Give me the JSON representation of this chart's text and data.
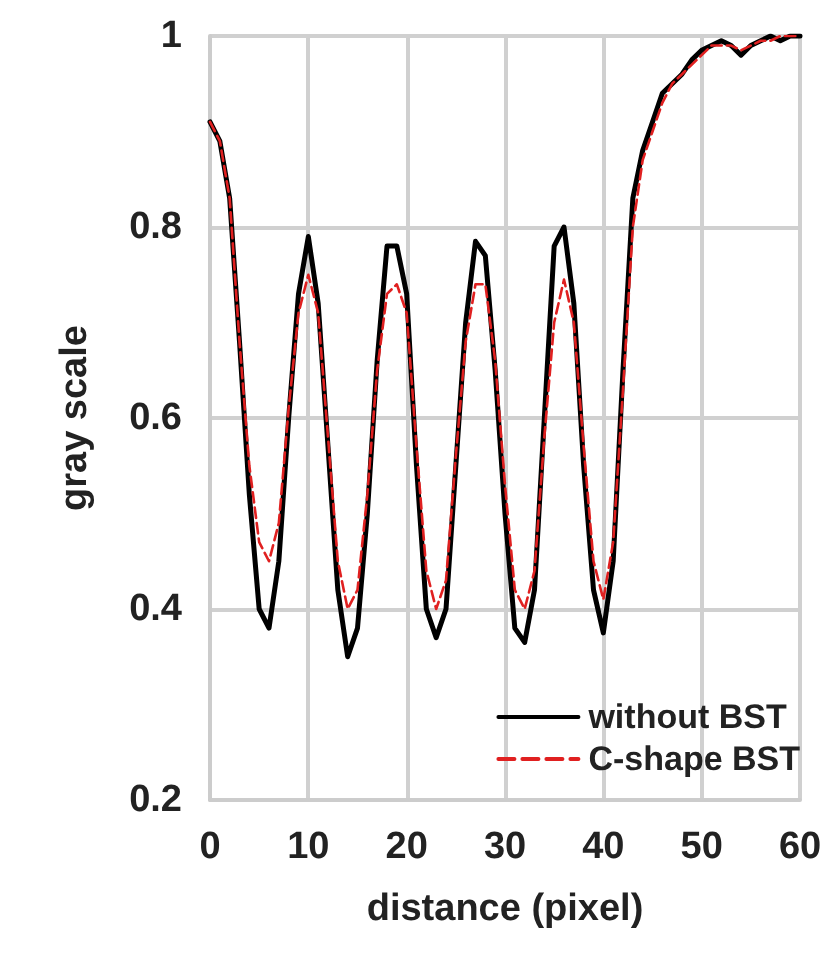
{
  "chart_data": {
    "type": "line",
    "xlabel": "distance (pixel)",
    "ylabel": "gray scale",
    "x": [
      0,
      1,
      2,
      3,
      4,
      5,
      6,
      7,
      8,
      9,
      10,
      11,
      12,
      13,
      14,
      15,
      16,
      17,
      18,
      19,
      20,
      21,
      22,
      23,
      24,
      25,
      26,
      27,
      28,
      29,
      30,
      31,
      32,
      33,
      34,
      35,
      36,
      37,
      38,
      39,
      40,
      41,
      42,
      43,
      44,
      45,
      46,
      47,
      48,
      49,
      50,
      51,
      52,
      53,
      54,
      55,
      56,
      57,
      58,
      59,
      60
    ],
    "series": [
      {
        "name": "without BST",
        "color": "#000000",
        "line_style": "solid",
        "values": [
          0.91,
          0.89,
          0.83,
          0.68,
          0.52,
          0.4,
          0.38,
          0.45,
          0.6,
          0.73,
          0.79,
          0.72,
          0.57,
          0.42,
          0.35,
          0.38,
          0.5,
          0.66,
          0.78,
          0.78,
          0.73,
          0.55,
          0.4,
          0.37,
          0.4,
          0.55,
          0.7,
          0.785,
          0.77,
          0.65,
          0.5,
          0.38,
          0.365,
          0.42,
          0.6,
          0.78,
          0.8,
          0.72,
          0.55,
          0.42,
          0.375,
          0.45,
          0.65,
          0.83,
          0.88,
          0.91,
          0.94,
          0.95,
          0.96,
          0.975,
          0.985,
          0.99,
          0.995,
          0.99,
          0.98,
          0.99,
          0.995,
          1.0,
          0.995,
          1.0,
          1.0
        ]
      },
      {
        "name": "C-shape BST",
        "color": "#e02020",
        "line_style": "dashed",
        "values": [
          0.91,
          0.89,
          0.83,
          0.68,
          0.55,
          0.47,
          0.45,
          0.49,
          0.61,
          0.71,
          0.75,
          0.71,
          0.58,
          0.45,
          0.4,
          0.42,
          0.52,
          0.65,
          0.73,
          0.74,
          0.71,
          0.57,
          0.44,
          0.4,
          0.43,
          0.56,
          0.68,
          0.74,
          0.74,
          0.66,
          0.53,
          0.42,
          0.4,
          0.44,
          0.58,
          0.7,
          0.745,
          0.7,
          0.57,
          0.45,
          0.41,
          0.47,
          0.63,
          0.8,
          0.87,
          0.9,
          0.93,
          0.95,
          0.96,
          0.97,
          0.98,
          0.99,
          0.99,
          0.99,
          0.985,
          0.99,
          0.995,
          0.995,
          1.0,
          1.0,
          1.0
        ]
      }
    ],
    "xlim": [
      0,
      60
    ],
    "xticks": [
      0,
      10,
      20,
      30,
      40,
      50,
      60
    ],
    "ylim": [
      0.2,
      1
    ],
    "yticks": [
      0.2,
      0.4,
      0.6,
      0.8,
      1
    ],
    "grid": true,
    "legend": "bottom right",
    "marker": "none"
  }
}
